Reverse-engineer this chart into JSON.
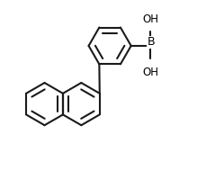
{
  "bg_color": "#ffffff",
  "line_color": "#1a1a1a",
  "line_width": 1.5,
  "text_color": "#000000",
  "font_size": 8.5,
  "figsize": [
    2.3,
    2.09
  ],
  "dpi": 100,
  "xlim": [
    -1.8,
    1.4
  ],
  "ylim": [
    -1.7,
    1.1
  ]
}
